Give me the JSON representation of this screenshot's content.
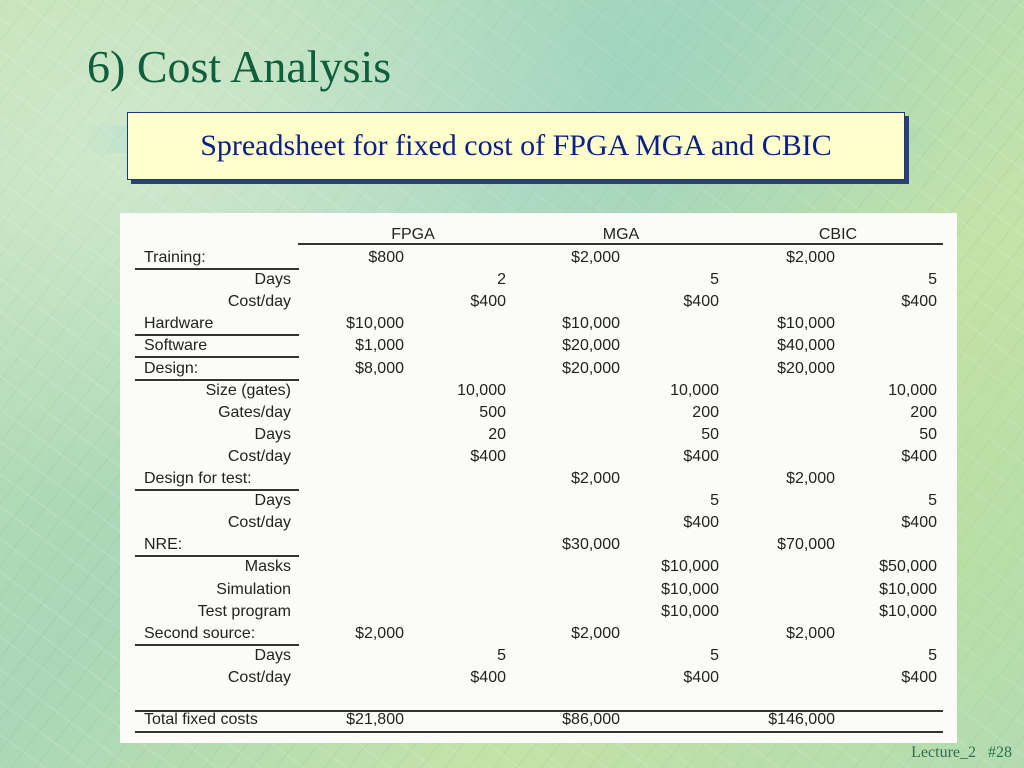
{
  "slide": {
    "title": "6) Cost Analysis",
    "subtitle": "Spreadsheet for fixed cost of FPGA MGA and CBIC",
    "footer_lecture": "Lecture_2",
    "footer_page": "#28"
  },
  "sheet": {
    "headers": [
      "FPGA",
      "MGA",
      "CBIC"
    ],
    "rows": [
      {
        "label": "Training:",
        "indent": false,
        "underline": true,
        "fpga_a": "$800",
        "fpga_b": "",
        "mga_a": "$2,000",
        "mga_b": "",
        "cbic_a": "$2,000",
        "cbic_b": ""
      },
      {
        "label": "Days",
        "indent": true,
        "underline": false,
        "fpga_a": "",
        "fpga_b": "2",
        "mga_a": "",
        "mga_b": "5",
        "cbic_a": "",
        "cbic_b": "5"
      },
      {
        "label": "Cost/day",
        "indent": true,
        "underline": false,
        "fpga_a": "",
        "fpga_b": "$400",
        "mga_a": "",
        "mga_b": "$400",
        "cbic_a": "",
        "cbic_b": "$400"
      },
      {
        "label": "Hardware",
        "indent": false,
        "underline": true,
        "fpga_a": "$10,000",
        "fpga_b": "",
        "mga_a": "$10,000",
        "mga_b": "",
        "cbic_a": "$10,000",
        "cbic_b": ""
      },
      {
        "label": "Software",
        "indent": false,
        "underline": true,
        "fpga_a": "$1,000",
        "fpga_b": "",
        "mga_a": "$20,000",
        "mga_b": "",
        "cbic_a": "$40,000",
        "cbic_b": ""
      },
      {
        "label": "Design:",
        "indent": false,
        "underline": true,
        "fpga_a": "$8,000",
        "fpga_b": "",
        "mga_a": "$20,000",
        "mga_b": "",
        "cbic_a": "$20,000",
        "cbic_b": ""
      },
      {
        "label": "Size (gates)",
        "indent": true,
        "underline": false,
        "fpga_a": "",
        "fpga_b": "10,000",
        "mga_a": "",
        "mga_b": "10,000",
        "cbic_a": "",
        "cbic_b": "10,000"
      },
      {
        "label": "Gates/day",
        "indent": true,
        "underline": false,
        "fpga_a": "",
        "fpga_b": "500",
        "mga_a": "",
        "mga_b": "200",
        "cbic_a": "",
        "cbic_b": "200"
      },
      {
        "label": "Days",
        "indent": true,
        "underline": false,
        "fpga_a": "",
        "fpga_b": "20",
        "mga_a": "",
        "mga_b": "50",
        "cbic_a": "",
        "cbic_b": "50"
      },
      {
        "label": "Cost/day",
        "indent": true,
        "underline": false,
        "fpga_a": "",
        "fpga_b": "$400",
        "mga_a": "",
        "mga_b": "$400",
        "cbic_a": "",
        "cbic_b": "$400"
      },
      {
        "label": "Design for test:",
        "indent": false,
        "underline": true,
        "fpga_a": "",
        "fpga_b": "",
        "mga_a": "$2,000",
        "mga_b": "",
        "cbic_a": "$2,000",
        "cbic_b": ""
      },
      {
        "label": "Days",
        "indent": true,
        "underline": false,
        "fpga_a": "",
        "fpga_b": "",
        "mga_a": "",
        "mga_b": "5",
        "cbic_a": "",
        "cbic_b": "5"
      },
      {
        "label": "Cost/day",
        "indent": true,
        "underline": false,
        "fpga_a": "",
        "fpga_b": "",
        "mga_a": "",
        "mga_b": "$400",
        "cbic_a": "",
        "cbic_b": "$400"
      },
      {
        "label": "NRE:",
        "indent": false,
        "underline": true,
        "fpga_a": "",
        "fpga_b": "",
        "mga_a": "$30,000",
        "mga_b": "",
        "cbic_a": "$70,000",
        "cbic_b": ""
      },
      {
        "label": "Masks",
        "indent": true,
        "underline": false,
        "fpga_a": "",
        "fpga_b": "",
        "mga_a": "",
        "mga_b": "$10,000",
        "cbic_a": "",
        "cbic_b": "$50,000"
      },
      {
        "label": "Simulation",
        "indent": true,
        "underline": false,
        "fpga_a": "",
        "fpga_b": "",
        "mga_a": "",
        "mga_b": "$10,000",
        "cbic_a": "",
        "cbic_b": "$10,000"
      },
      {
        "label": "Test program",
        "indent": true,
        "underline": false,
        "fpga_a": "",
        "fpga_b": "",
        "mga_a": "",
        "mga_b": "$10,000",
        "cbic_a": "",
        "cbic_b": "$10,000"
      },
      {
        "label": "Second source:",
        "indent": false,
        "underline": true,
        "fpga_a": "$2,000",
        "fpga_b": "",
        "mga_a": "$2,000",
        "mga_b": "",
        "cbic_a": "$2,000",
        "cbic_b": ""
      },
      {
        "label": "Days",
        "indent": true,
        "underline": false,
        "fpga_a": "",
        "fpga_b": "5",
        "mga_a": "",
        "mga_b": "5",
        "cbic_a": "",
        "cbic_b": "5"
      },
      {
        "label": "Cost/day",
        "indent": true,
        "underline": false,
        "fpga_a": "",
        "fpga_b": "$400",
        "mga_a": "",
        "mga_b": "$400",
        "cbic_a": "",
        "cbic_b": "$400"
      }
    ],
    "total": {
      "label": "Total fixed costs",
      "fpga": "$21,800",
      "mga": "$86,000",
      "cbic": "$146,000"
    }
  }
}
